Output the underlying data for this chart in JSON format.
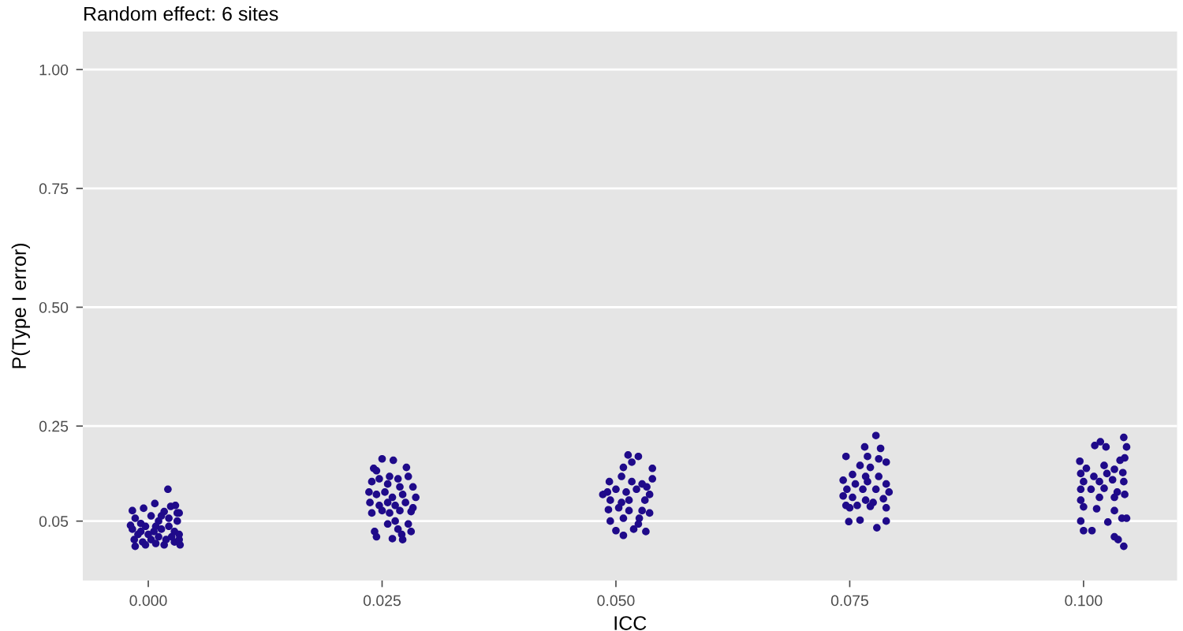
{
  "chart_data": {
    "type": "scatter",
    "title": "Random effect: 6 sites",
    "xlabel": "ICC",
    "ylabel": "P(Type I error)",
    "xlim": [
      -0.007,
      0.11
    ],
    "ylim": [
      -0.075,
      1.08
    ],
    "xticks": [
      {
        "value": 0,
        "label": "0.000"
      },
      {
        "value": 0.025,
        "label": "0.025"
      },
      {
        "value": 0.05,
        "label": "0.050"
      },
      {
        "value": 0.075,
        "label": "0.075"
      },
      {
        "value": 0.1,
        "label": "0.100"
      }
    ],
    "yticks": [
      0.05,
      0.25,
      {
        "value": 0.5,
        "label": "0.50"
      },
      {
        "value": 0.75,
        "label": "0.75"
      },
      {
        "value": 1,
        "label": "1.00"
      }
    ],
    "grid": "y",
    "marker": "circle",
    "series": [
      {
        "color": "#1f0a8a",
        "x": [
          0.0021,
          -0.0017,
          -0.0005,
          0.0007,
          0.0024,
          0.0029,
          0.0033,
          0.0017,
          -0.0014,
          -0.0008,
          0.0003,
          0.0011,
          0.0022,
          0.0031,
          -0.0017,
          -0.0011,
          -0.0003,
          0.0006,
          0.0014,
          0.0022,
          0.0028,
          0.0033,
          -0.0015,
          -0.0006,
          0.0003,
          0.0011,
          0.0019,
          0.0028,
          0.0034,
          -0.0014,
          -0.0003,
          0.0008,
          0.0017,
          0.0025,
          0.0033,
          0.0,
          0.0008,
          -0.0008,
          -0.0019,
          0.0014,
          0.0031,
          0.025,
          0.0262,
          0.0241,
          0.0276,
          0.0244,
          0.0258,
          0.0267,
          0.0278,
          0.0239,
          0.0247,
          0.0256,
          0.0269,
          0.0283,
          0.0236,
          0.0244,
          0.0253,
          0.0261,
          0.0272,
          0.0286,
          0.0237,
          0.0247,
          0.0256,
          0.0264,
          0.0275,
          0.0283,
          0.0239,
          0.025,
          0.0258,
          0.0269,
          0.0281,
          0.0256,
          0.0264,
          0.0278,
          0.0242,
          0.0244,
          0.0261,
          0.0271,
          0.0272,
          0.0281,
          0.0267,
          0.0513,
          0.0524,
          0.0517,
          0.0508,
          0.0539,
          0.0506,
          0.0539,
          0.0493,
          0.0517,
          0.0528,
          0.0533,
          0.0491,
          0.05,
          0.0511,
          0.0522,
          0.0536,
          0.0494,
          0.0506,
          0.0514,
          0.0531,
          0.0492,
          0.0503,
          0.0514,
          0.0528,
          0.0494,
          0.0508,
          0.0525,
          0.05,
          0.0508,
          0.0519,
          0.0524,
          0.0532,
          0.0536,
          0.0486,
          0.0778,
          0.0766,
          0.0783,
          0.0746,
          0.0769,
          0.0781,
          0.0789,
          0.0761,
          0.0772,
          0.0753,
          0.0767,
          0.0781,
          0.0743,
          0.0756,
          0.0769,
          0.0789,
          0.0747,
          0.0764,
          0.0778,
          0.0792,
          0.0743,
          0.0753,
          0.0767,
          0.0775,
          0.0786,
          0.0746,
          0.0758,
          0.0772,
          0.0789,
          0.075,
          0.0749,
          0.0761,
          0.0779,
          0.0789,
          0.1043,
          0.1012,
          0.1018,
          0.1024,
          0.1046,
          0.1044,
          0.0996,
          0.1039,
          0.1022,
          0.1003,
          0.1033,
          0.0997,
          0.1011,
          0.1025,
          0.1042,
          0.1,
          0.1017,
          0.1031,
          0.1043,
          0.0997,
          0.1008,
          0.1022,
          0.1036,
          0.0997,
          0.1017,
          0.1033,
          0.1044,
          0.1,
          0.1014,
          0.1033,
          0.1041,
          0.1046,
          0.0997,
          0.1026,
          0.1,
          0.1009,
          0.1033,
          0.1037,
          0.1043
        ],
        "values": [
          0.117,
          0.072,
          0.077,
          0.087,
          0.081,
          0.083,
          0.067,
          0.07,
          0.056,
          0.045,
          0.061,
          0.05,
          0.056,
          0.05,
          0.033,
          0.022,
          0.039,
          0.028,
          0.033,
          0.039,
          0.028,
          0.022,
          0.011,
          0.006,
          0.011,
          0.017,
          0.011,
          0.006,
          0.0,
          -0.003,
          0.0,
          0.003,
          0.0,
          0.017,
          0.011,
          0.022,
          0.039,
          0.028,
          0.041,
          0.061,
          0.067,
          0.181,
          0.178,
          0.161,
          0.163,
          0.156,
          0.144,
          0.139,
          0.144,
          0.133,
          0.139,
          0.128,
          0.122,
          0.122,
          0.111,
          0.106,
          0.111,
          0.1,
          0.106,
          0.1,
          0.089,
          0.083,
          0.089,
          0.083,
          0.089,
          0.078,
          0.067,
          0.072,
          0.067,
          0.072,
          0.07,
          0.044,
          0.05,
          0.044,
          0.028,
          0.017,
          0.013,
          0.022,
          0.011,
          0.028,
          0.033,
          0.189,
          0.186,
          0.174,
          0.163,
          0.161,
          0.144,
          0.139,
          0.133,
          0.133,
          0.128,
          0.122,
          0.111,
          0.117,
          0.111,
          0.117,
          0.106,
          0.094,
          0.089,
          0.094,
          0.094,
          0.074,
          0.078,
          0.072,
          0.072,
          0.05,
          0.056,
          0.056,
          0.03,
          0.02,
          0.033,
          0.044,
          0.028,
          0.067,
          0.106,
          0.23,
          0.206,
          0.203,
          0.186,
          0.186,
          0.181,
          0.174,
          0.167,
          0.163,
          0.148,
          0.144,
          0.144,
          0.136,
          0.128,
          0.133,
          0.128,
          0.117,
          0.117,
          0.117,
          0.111,
          0.103,
          0.1,
          0.094,
          0.089,
          0.097,
          0.083,
          0.083,
          0.081,
          0.078,
          0.078,
          0.049,
          0.052,
          0.036,
          0.05,
          0.226,
          0.209,
          0.217,
          0.206,
          0.206,
          0.183,
          0.176,
          0.178,
          0.167,
          0.161,
          0.159,
          0.15,
          0.144,
          0.15,
          0.152,
          0.133,
          0.133,
          0.137,
          0.133,
          0.117,
          0.117,
          0.119,
          0.111,
          0.094,
          0.1,
          0.1,
          0.106,
          0.08,
          0.076,
          0.072,
          0.056,
          0.056,
          0.05,
          0.048,
          0.03,
          0.03,
          0.017,
          0.011,
          -0.003
        ]
      }
    ]
  }
}
